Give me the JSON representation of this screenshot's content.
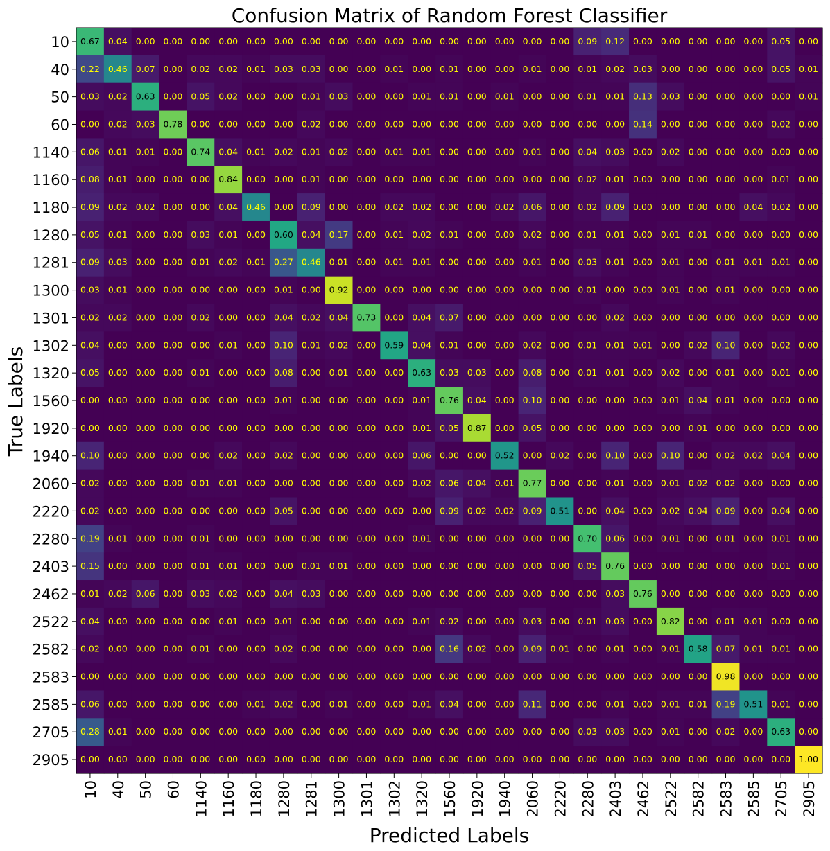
{
  "chart_data": {
    "type": "heatmap",
    "title": "Confusion Matrix of Random Forest Classifier",
    "xlabel": "Predicted Labels",
    "ylabel": "True Labels",
    "labels": [
      "10",
      "40",
      "50",
      "60",
      "1140",
      "1160",
      "1180",
      "1280",
      "1281",
      "1300",
      "1301",
      "1302",
      "1320",
      "1560",
      "1920",
      "1940",
      "2060",
      "2220",
      "2280",
      "2403",
      "2462",
      "2522",
      "2582",
      "2583",
      "2585",
      "2705",
      "2905"
    ],
    "colormap": "viridis",
    "value_range": [
      0,
      1
    ],
    "matrix": [
      [
        0.67,
        0.04,
        0.0,
        0.0,
        0.0,
        0.0,
        0.0,
        0.0,
        0.0,
        0.0,
        0.0,
        0.0,
        0.0,
        0.0,
        0.0,
        0.0,
        0.0,
        0.0,
        0.09,
        0.12,
        0.0,
        0.0,
        0.0,
        0.0,
        0.0,
        0.05,
        0.0
      ],
      [
        0.22,
        0.46,
        0.07,
        0.0,
        0.02,
        0.02,
        0.01,
        0.03,
        0.03,
        0.0,
        0.0,
        0.01,
        0.0,
        0.01,
        0.0,
        0.0,
        0.01,
        0.0,
        0.01,
        0.02,
        0.03,
        0.0,
        0.0,
        0.0,
        0.0,
        0.05,
        0.01
      ],
      [
        0.03,
        0.02,
        0.63,
        0.0,
        0.05,
        0.02,
        0.0,
        0.0,
        0.01,
        0.03,
        0.0,
        0.0,
        0.01,
        0.01,
        0.0,
        0.01,
        0.0,
        0.0,
        0.01,
        0.01,
        0.13,
        0.03,
        0.0,
        0.0,
        0.0,
        0.0,
        0.01
      ],
      [
        0.0,
        0.02,
        0.03,
        0.78,
        0.0,
        0.0,
        0.0,
        0.0,
        0.02,
        0.0,
        0.0,
        0.0,
        0.0,
        0.0,
        0.0,
        0.0,
        0.0,
        0.0,
        0.0,
        0.0,
        0.14,
        0.0,
        0.0,
        0.0,
        0.0,
        0.02,
        0.0
      ],
      [
        0.06,
        0.01,
        0.01,
        0.0,
        0.74,
        0.04,
        0.01,
        0.02,
        0.01,
        0.02,
        0.0,
        0.01,
        0.01,
        0.0,
        0.0,
        0.0,
        0.01,
        0.0,
        0.04,
        0.03,
        0.0,
        0.02,
        0.0,
        0.0,
        0.0,
        0.0,
        0.0
      ],
      [
        0.08,
        0.01,
        0.0,
        0.0,
        0.0,
        0.84,
        0.0,
        0.0,
        0.01,
        0.0,
        0.0,
        0.0,
        0.0,
        0.0,
        0.0,
        0.0,
        0.0,
        0.0,
        0.02,
        0.01,
        0.0,
        0.0,
        0.0,
        0.0,
        0.0,
        0.01,
        0.0
      ],
      [
        0.09,
        0.02,
        0.02,
        0.0,
        0.0,
        0.04,
        0.46,
        0.0,
        0.09,
        0.0,
        0.0,
        0.02,
        0.02,
        0.0,
        0.0,
        0.02,
        0.06,
        0.0,
        0.02,
        0.09,
        0.0,
        0.0,
        0.0,
        0.0,
        0.04,
        0.02,
        0.0
      ],
      [
        0.05,
        0.01,
        0.0,
        0.0,
        0.03,
        0.01,
        0.0,
        0.6,
        0.04,
        0.17,
        0.0,
        0.01,
        0.02,
        0.01,
        0.0,
        0.0,
        0.02,
        0.0,
        0.01,
        0.01,
        0.0,
        0.01,
        0.01,
        0.0,
        0.0,
        0.0,
        0.0
      ],
      [
        0.09,
        0.03,
        0.0,
        0.0,
        0.01,
        0.02,
        0.01,
        0.27,
        0.46,
        0.01,
        0.0,
        0.01,
        0.01,
        0.0,
        0.0,
        0.0,
        0.01,
        0.0,
        0.03,
        0.01,
        0.0,
        0.01,
        0.0,
        0.01,
        0.01,
        0.01,
        0.0
      ],
      [
        0.03,
        0.01,
        0.0,
        0.0,
        0.0,
        0.0,
        0.0,
        0.01,
        0.0,
        0.92,
        0.0,
        0.0,
        0.0,
        0.0,
        0.0,
        0.0,
        0.0,
        0.0,
        0.01,
        0.0,
        0.0,
        0.01,
        0.0,
        0.01,
        0.0,
        0.0,
        0.0
      ],
      [
        0.02,
        0.02,
        0.0,
        0.0,
        0.02,
        0.0,
        0.0,
        0.04,
        0.02,
        0.04,
        0.73,
        0.0,
        0.04,
        0.07,
        0.0,
        0.0,
        0.0,
        0.0,
        0.0,
        0.02,
        0.0,
        0.0,
        0.0,
        0.0,
        0.0,
        0.0,
        0.0
      ],
      [
        0.04,
        0.0,
        0.0,
        0.0,
        0.0,
        0.01,
        0.0,
        0.1,
        0.01,
        0.02,
        0.0,
        0.59,
        0.04,
        0.01,
        0.0,
        0.0,
        0.02,
        0.0,
        0.01,
        0.01,
        0.01,
        0.0,
        0.02,
        0.1,
        0.0,
        0.02,
        0.0
      ],
      [
        0.05,
        0.0,
        0.0,
        0.0,
        0.01,
        0.0,
        0.0,
        0.08,
        0.0,
        0.01,
        0.0,
        0.0,
        0.63,
        0.03,
        0.03,
        0.0,
        0.08,
        0.0,
        0.01,
        0.01,
        0.0,
        0.02,
        0.0,
        0.01,
        0.0,
        0.01,
        0.0
      ],
      [
        0.0,
        0.0,
        0.0,
        0.0,
        0.0,
        0.0,
        0.0,
        0.01,
        0.0,
        0.0,
        0.0,
        0.0,
        0.01,
        0.76,
        0.04,
        0.0,
        0.1,
        0.0,
        0.0,
        0.0,
        0.0,
        0.01,
        0.04,
        0.01,
        0.0,
        0.0,
        0.0
      ],
      [
        0.0,
        0.0,
        0.0,
        0.0,
        0.0,
        0.0,
        0.0,
        0.0,
        0.0,
        0.0,
        0.0,
        0.0,
        0.01,
        0.05,
        0.87,
        0.0,
        0.05,
        0.0,
        0.0,
        0.0,
        0.0,
        0.0,
        0.01,
        0.0,
        0.0,
        0.0,
        0.0
      ],
      [
        0.1,
        0.0,
        0.0,
        0.0,
        0.0,
        0.02,
        0.0,
        0.02,
        0.0,
        0.0,
        0.0,
        0.0,
        0.06,
        0.0,
        0.0,
        0.52,
        0.0,
        0.02,
        0.0,
        0.1,
        0.0,
        0.1,
        0.0,
        0.02,
        0.02,
        0.04,
        0.0
      ],
      [
        0.02,
        0.0,
        0.0,
        0.0,
        0.01,
        0.01,
        0.0,
        0.0,
        0.0,
        0.0,
        0.0,
        0.0,
        0.02,
        0.06,
        0.04,
        0.01,
        0.77,
        0.0,
        0.0,
        0.01,
        0.0,
        0.01,
        0.02,
        0.02,
        0.0,
        0.0,
        0.0
      ],
      [
        0.02,
        0.0,
        0.0,
        0.0,
        0.0,
        0.0,
        0.0,
        0.05,
        0.0,
        0.0,
        0.0,
        0.0,
        0.0,
        0.09,
        0.02,
        0.02,
        0.09,
        0.51,
        0.0,
        0.04,
        0.0,
        0.02,
        0.04,
        0.09,
        0.0,
        0.04,
        0.0
      ],
      [
        0.19,
        0.01,
        0.0,
        0.0,
        0.01,
        0.0,
        0.0,
        0.0,
        0.0,
        0.0,
        0.0,
        0.0,
        0.01,
        0.0,
        0.0,
        0.0,
        0.0,
        0.0,
        0.7,
        0.06,
        0.0,
        0.01,
        0.0,
        0.01,
        0.0,
        0.01,
        0.0
      ],
      [
        0.15,
        0.0,
        0.0,
        0.0,
        0.01,
        0.01,
        0.0,
        0.0,
        0.01,
        0.01,
        0.0,
        0.0,
        0.0,
        0.0,
        0.0,
        0.0,
        0.0,
        0.0,
        0.05,
        0.76,
        0.0,
        0.0,
        0.0,
        0.0,
        0.0,
        0.01,
        0.0
      ],
      [
        0.01,
        0.02,
        0.06,
        0.0,
        0.03,
        0.02,
        0.0,
        0.04,
        0.03,
        0.0,
        0.0,
        0.0,
        0.0,
        0.0,
        0.0,
        0.0,
        0.0,
        0.0,
        0.0,
        0.03,
        0.76,
        0.0,
        0.0,
        0.0,
        0.0,
        0.0,
        0.0
      ],
      [
        0.04,
        0.0,
        0.0,
        0.0,
        0.0,
        0.01,
        0.0,
        0.01,
        0.0,
        0.0,
        0.0,
        0.0,
        0.01,
        0.02,
        0.0,
        0.0,
        0.03,
        0.0,
        0.01,
        0.03,
        0.0,
        0.82,
        0.0,
        0.01,
        0.01,
        0.0,
        0.0
      ],
      [
        0.02,
        0.0,
        0.0,
        0.0,
        0.01,
        0.0,
        0.0,
        0.02,
        0.0,
        0.0,
        0.0,
        0.0,
        0.0,
        0.16,
        0.02,
        0.0,
        0.09,
        0.01,
        0.0,
        0.01,
        0.0,
        0.01,
        0.58,
        0.07,
        0.01,
        0.01,
        0.0
      ],
      [
        0.0,
        0.0,
        0.0,
        0.0,
        0.0,
        0.0,
        0.0,
        0.0,
        0.0,
        0.0,
        0.0,
        0.0,
        0.0,
        0.0,
        0.0,
        0.0,
        0.0,
        0.0,
        0.0,
        0.0,
        0.0,
        0.0,
        0.0,
        0.98,
        0.0,
        0.0,
        0.0
      ],
      [
        0.06,
        0.0,
        0.0,
        0.0,
        0.0,
        0.0,
        0.01,
        0.02,
        0.0,
        0.01,
        0.0,
        0.0,
        0.01,
        0.04,
        0.0,
        0.0,
        0.11,
        0.0,
        0.0,
        0.01,
        0.0,
        0.01,
        0.01,
        0.19,
        0.51,
        0.01,
        0.0
      ],
      [
        0.28,
        0.01,
        0.0,
        0.0,
        0.0,
        0.0,
        0.0,
        0.0,
        0.0,
        0.0,
        0.0,
        0.0,
        0.0,
        0.0,
        0.0,
        0.0,
        0.0,
        0.0,
        0.03,
        0.03,
        0.0,
        0.01,
        0.0,
        0.02,
        0.0,
        0.63,
        0.0
      ],
      [
        0.0,
        0.0,
        0.0,
        0.0,
        0.0,
        0.0,
        0.0,
        0.0,
        0.0,
        0.0,
        0.0,
        0.0,
        0.0,
        0.0,
        0.0,
        0.0,
        0.0,
        0.0,
        0.0,
        0.0,
        0.0,
        0.0,
        0.0,
        0.0,
        0.0,
        0.0,
        1.0
      ]
    ]
  }
}
